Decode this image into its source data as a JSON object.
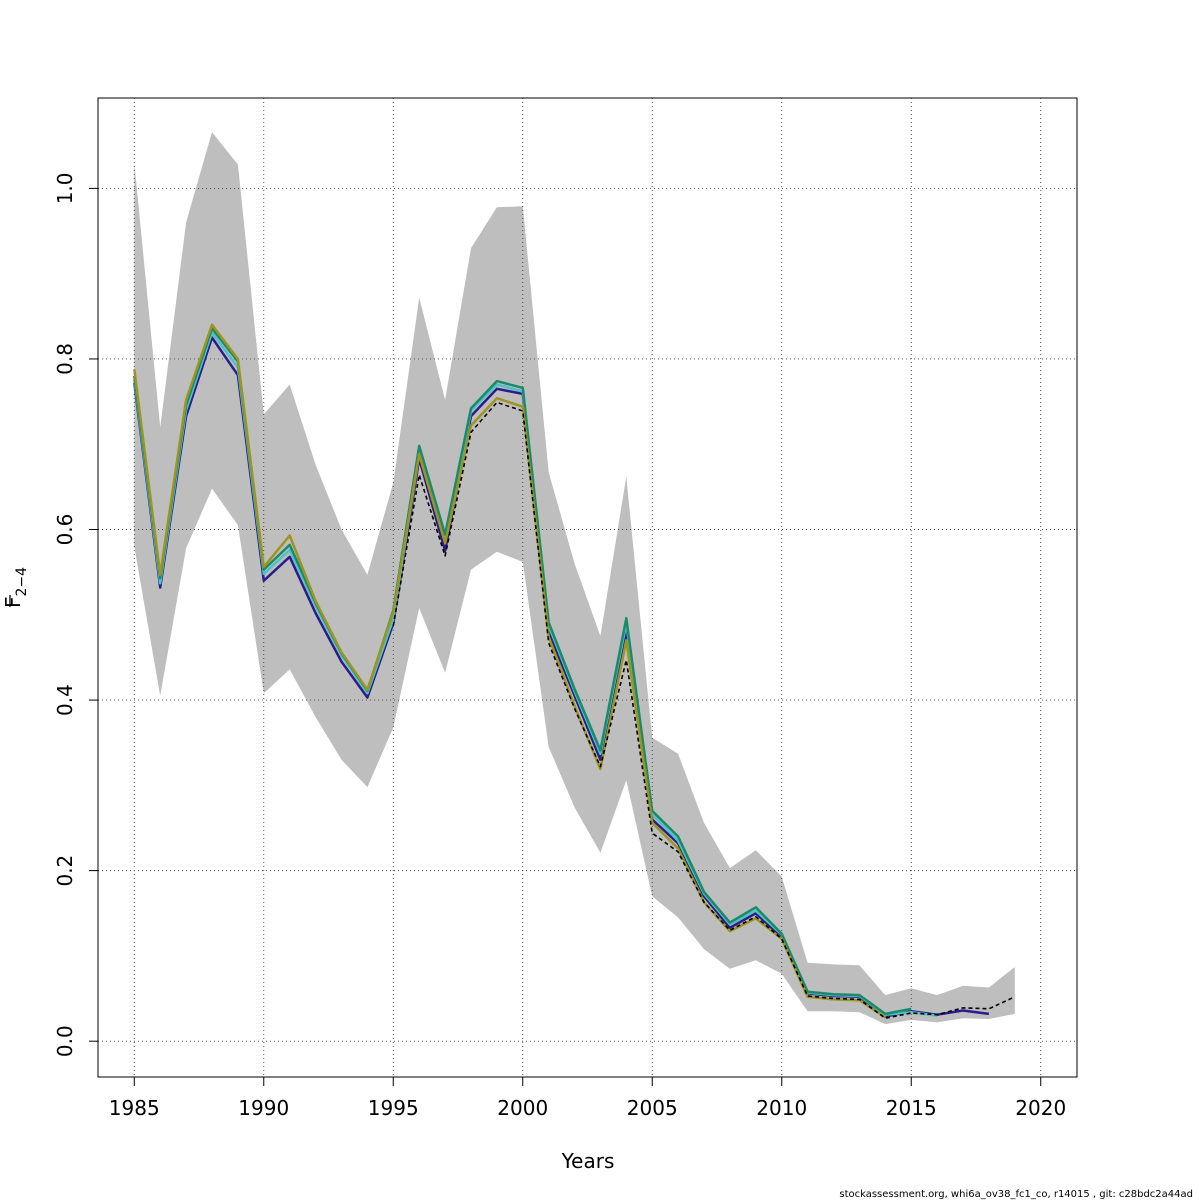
{
  "chart_data": {
    "type": "line",
    "title": "",
    "xlabel": "Years",
    "ylabel_main": "F",
    "ylabel_sub": "2−4",
    "xlim": [
      1983.6,
      2021.4
    ],
    "ylim": [
      -0.042,
      1.106
    ],
    "xticks": [
      1985,
      1990,
      1995,
      2000,
      2005,
      2010,
      2015,
      2020
    ],
    "yticks": [
      0.0,
      0.2,
      0.4,
      0.6,
      0.8,
      1.0
    ],
    "ytick_labels": [
      "0.0",
      "0.2",
      "0.4",
      "0.6",
      "0.8",
      "1.0"
    ],
    "grid": true,
    "band": {
      "x": [
        1985,
        1986,
        1987,
        1988,
        1989,
        1990,
        1991,
        1992,
        1993,
        1994,
        1995,
        1996,
        1997,
        1998,
        1999,
        2000,
        2001,
        2002,
        2003,
        2004,
        2005,
        2006,
        2007,
        2008,
        2009,
        2010,
        2011,
        2012,
        2013,
        2014,
        2015,
        2016,
        2017,
        2018,
        2019
      ],
      "upper": [
        1.03,
        0.72,
        0.96,
        1.066,
        1.028,
        0.735,
        0.77,
        0.676,
        0.6,
        0.547,
        0.655,
        0.872,
        0.752,
        0.93,
        0.978,
        0.979,
        0.667,
        0.56,
        0.475,
        0.662,
        0.356,
        0.337,
        0.256,
        0.203,
        0.224,
        0.193,
        0.092,
        0.09,
        0.089,
        0.054,
        0.062,
        0.054,
        0.065,
        0.063,
        0.087
      ],
      "lower": [
        0.58,
        0.405,
        0.578,
        0.648,
        0.605,
        0.408,
        0.436,
        0.38,
        0.33,
        0.298,
        0.368,
        0.508,
        0.432,
        0.553,
        0.574,
        0.562,
        0.345,
        0.274,
        0.221,
        0.306,
        0.17,
        0.145,
        0.108,
        0.085,
        0.095,
        0.079,
        0.035,
        0.035,
        0.034,
        0.02,
        0.025,
        0.022,
        0.027,
        0.026,
        0.032
      ],
      "color": "#bebebe"
    },
    "x": [
      1985,
      1986,
      1987,
      1988,
      1989,
      1990,
      1991,
      1992,
      1993,
      1994,
      1995,
      1996,
      1997,
      1998,
      1999,
      2000,
      2001,
      2002,
      2003,
      2004,
      2005,
      2006,
      2007,
      2008,
      2009,
      2010,
      2011,
      2012,
      2013,
      2014,
      2015,
      2016,
      2017,
      2018,
      2019
    ],
    "series": [
      {
        "color": "#2b1b8c",
        "width": 2.5,
        "dashed": false,
        "values": [
          0.772,
          0.532,
          0.733,
          0.825,
          0.781,
          0.54,
          0.568,
          0.502,
          0.445,
          0.403,
          0.49,
          0.683,
          0.575,
          0.733,
          0.765,
          0.759,
          0.48,
          0.405,
          0.33,
          0.48,
          0.26,
          0.232,
          0.17,
          0.133,
          0.15,
          0.122,
          0.056,
          0.053,
          0.052,
          0.029,
          0.035,
          0.031,
          0.036,
          0.032,
          null
        ]
      },
      {
        "color": "#4ec3c3",
        "width": 2.5,
        "dashed": false,
        "values": [
          0.776,
          0.537,
          0.74,
          0.831,
          0.79,
          0.548,
          0.576,
          0.51,
          0.452,
          0.408,
          0.495,
          0.69,
          0.585,
          0.739,
          0.77,
          0.762,
          0.487,
          0.41,
          0.337,
          0.49,
          0.266,
          0.235,
          0.173,
          0.137,
          0.153,
          0.125,
          0.057,
          0.054,
          0.053,
          0.031,
          0.034,
          0.03,
          null,
          null,
          null
        ]
      },
      {
        "color": "#1a8a6a",
        "width": 2.5,
        "dashed": false,
        "values": [
          0.78,
          0.543,
          0.746,
          0.836,
          0.797,
          0.553,
          0.582,
          0.514,
          0.455,
          0.411,
          0.505,
          0.698,
          0.594,
          0.742,
          0.774,
          0.766,
          0.491,
          0.413,
          0.341,
          0.496,
          0.27,
          0.24,
          0.175,
          0.139,
          0.157,
          0.126,
          0.058,
          0.055,
          0.054,
          0.032,
          0.038,
          null,
          null,
          null,
          null
        ]
      },
      {
        "color": "#9e9420",
        "width": 2.5,
        "dashed": false,
        "values": [
          0.788,
          0.547,
          0.752,
          0.84,
          0.8,
          0.556,
          0.593,
          0.516,
          0.456,
          0.412,
          0.503,
          0.688,
          0.584,
          0.722,
          0.754,
          0.744,
          0.474,
          0.393,
          0.319,
          0.47,
          0.256,
          0.226,
          0.163,
          0.129,
          0.144,
          0.12,
          0.052,
          0.049,
          0.048,
          0.028,
          null,
          null,
          null,
          null,
          null
        ]
      },
      {
        "color": "#000000",
        "width": 1.6,
        "dashed": true,
        "values": [
          null,
          null,
          null,
          null,
          null,
          null,
          null,
          null,
          null,
          null,
          0.487,
          0.664,
          0.569,
          0.714,
          0.749,
          0.739,
          0.467,
          0.39,
          0.322,
          0.447,
          0.244,
          0.222,
          0.163,
          0.13,
          0.146,
          0.12,
          0.053,
          0.05,
          0.049,
          0.027,
          0.033,
          0.031,
          0.039,
          0.038,
          0.052
        ]
      }
    ]
  },
  "footer_text": "stockassessment.org, whi6a_ov38_fc1_co, r14015 , git: c28bdc2a44ad"
}
